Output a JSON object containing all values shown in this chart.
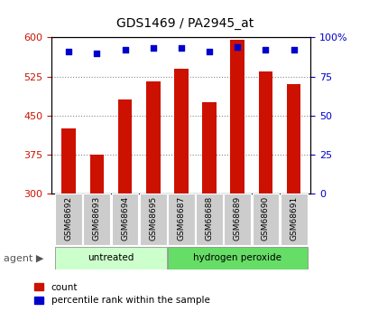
{
  "title": "GDS1469 / PA2945_at",
  "samples": [
    "GSM68692",
    "GSM68693",
    "GSM68694",
    "GSM68695",
    "GSM68687",
    "GSM68688",
    "GSM68689",
    "GSM68690",
    "GSM68691"
  ],
  "counts": [
    425,
    375,
    480,
    515,
    540,
    475,
    595,
    535,
    510
  ],
  "percentiles": [
    91,
    90,
    92,
    93,
    93,
    91,
    94,
    92,
    92
  ],
  "bar_color": "#cc1100",
  "dot_color": "#0000cc",
  "ymin": 300,
  "ymax": 600,
  "yticks": [
    300,
    375,
    450,
    525,
    600
  ],
  "y2min": 0,
  "y2max": 100,
  "y2ticks": [
    0,
    25,
    50,
    75,
    100
  ],
  "untreated_color": "#ccffcc",
  "hp_color": "#66dd66",
  "label_color_left": "#cc1100",
  "label_color_right": "#0000cc",
  "grid_color": "#888888",
  "background_color": "#ffffff",
  "tick_label_bg": "#cccccc"
}
